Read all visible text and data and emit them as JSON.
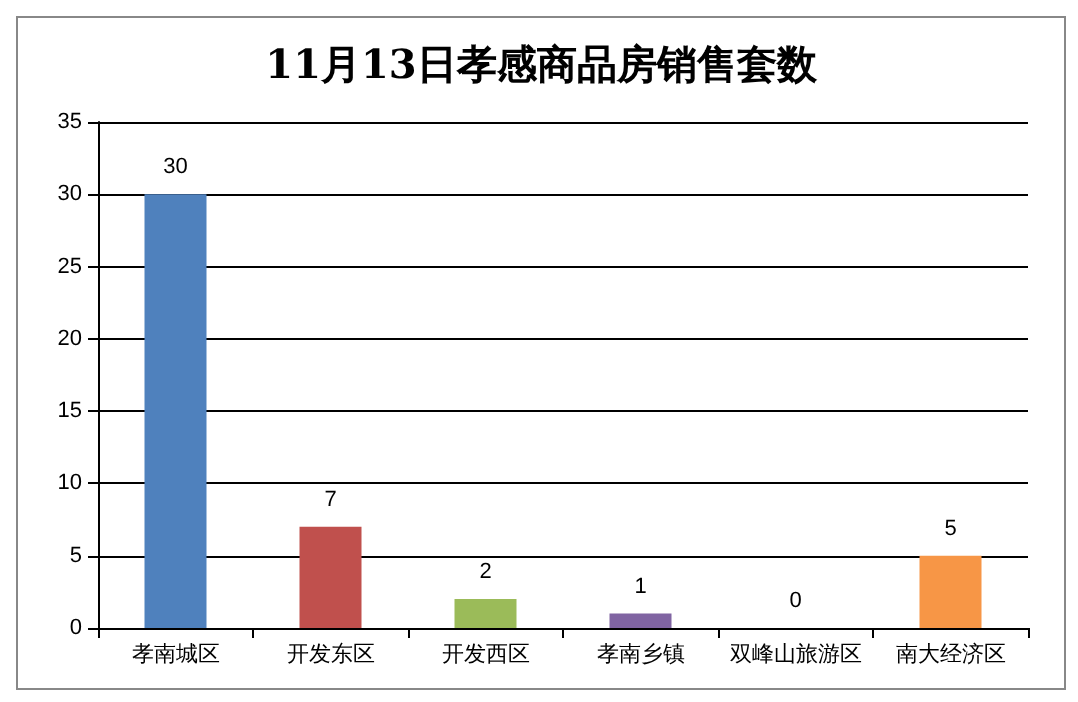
{
  "chart_data": {
    "type": "bar",
    "title": "11月13日孝感商品房销售套数",
    "categories": [
      "孝南城区",
      "开发东区",
      "开发西区",
      "孝南乡镇",
      "双峰山旅游区",
      "南大经济区"
    ],
    "values": [
      30,
      7,
      2,
      1,
      0,
      5
    ],
    "colors": [
      "#4f81bd",
      "#c0504d",
      "#9bbb59",
      "#8064a2",
      "#4bacc6",
      "#f79646"
    ],
    "ylim": [
      0,
      35
    ],
    "yticks": [
      0,
      5,
      10,
      15,
      20,
      25,
      30,
      35
    ],
    "grid": "y",
    "data_labels": true
  }
}
